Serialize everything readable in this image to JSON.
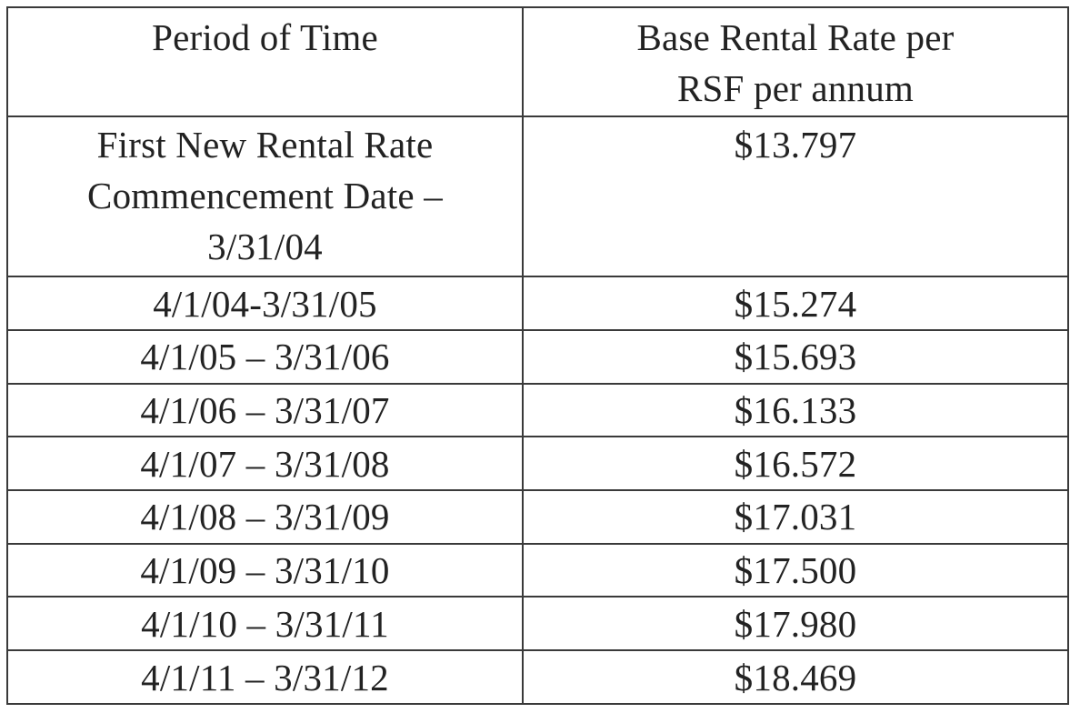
{
  "table": {
    "headers": {
      "period": "Period of Time",
      "rate": "Base Rental Rate per\nRSF per annum"
    },
    "rows": [
      {
        "period": "First New Rental Rate\nCommencement Date –\n3/31/04",
        "rate": "$13.797"
      },
      {
        "period": "4/1/04-3/31/05",
        "rate": "$15.274"
      },
      {
        "period": "4/1/05 – 3/31/06",
        "rate": "$15.693"
      },
      {
        "period": "4/1/06 – 3/31/07",
        "rate": "$16.133"
      },
      {
        "period": "4/1/07 – 3/31/08",
        "rate": "$16.572"
      },
      {
        "period": "4/1/08 – 3/31/09",
        "rate": "$17.031"
      },
      {
        "period": "4/1/09 – 3/31/10",
        "rate": "$17.500"
      },
      {
        "period": "4/1/10 – 3/31/11",
        "rate": "$17.980"
      },
      {
        "period": "4/1/11 – 3/31/12",
        "rate": "$18.469"
      }
    ]
  }
}
